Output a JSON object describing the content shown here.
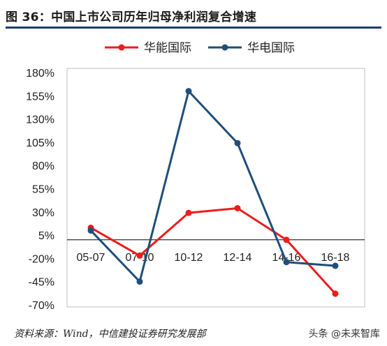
{
  "header": {
    "title": "图 36：中国上市公司历年归母净利润复合增速"
  },
  "footer": {
    "source": "资料来源：Wind，中信建投证券研究发展部",
    "watermark": "头条 @未来智库"
  },
  "colors": {
    "series_1": "#ee1c1c",
    "series_2": "#1f4e79",
    "title_rule": "#1f3a6e"
  },
  "chart_data": {
    "type": "line",
    "categories": [
      "05-07",
      "07-10",
      "10-12",
      "12-14",
      "14-16",
      "16-18"
    ],
    "series": [
      {
        "name": "华能国际",
        "values": [
          13,
          -17,
          29,
          34,
          0,
          -58
        ]
      },
      {
        "name": "华电国际",
        "values": [
          10,
          -45,
          160,
          104,
          -24,
          -28
        ]
      }
    ],
    "y_ticks": [
      "180%",
      "155%",
      "130%",
      "105%",
      "80%",
      "55%",
      "30%",
      "5%",
      "-20%",
      "-45%",
      "-70%"
    ],
    "y_tick_values": [
      180,
      155,
      130,
      105,
      80,
      55,
      30,
      5,
      -20,
      -45,
      -70
    ],
    "ylim": [
      -70,
      180
    ],
    "x_axis_at": 0,
    "legend_position": "top",
    "grid": false,
    "title": "",
    "xlabel": "",
    "ylabel": ""
  }
}
